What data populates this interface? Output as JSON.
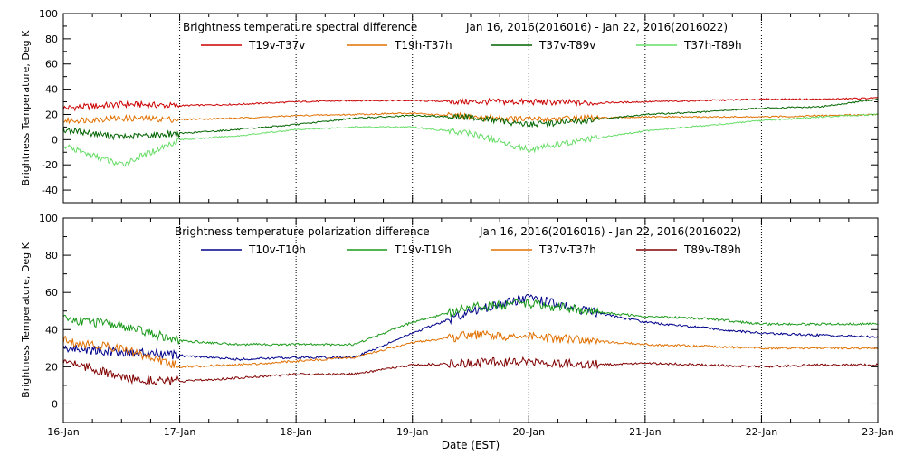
{
  "chart_data": [
    {
      "type": "line",
      "title": "Brightness temperature spectral difference",
      "subtitle": "Jan 16, 2016(2016016) - Jan 22, 2016(2016022)",
      "xlabel": "",
      "ylabel": "Brightness Temperature, Deg K",
      "ylim": [
        -50,
        100
      ],
      "xlim": [
        "16-Jan",
        "23-Jan"
      ],
      "yticks": [
        -40,
        -20,
        0,
        20,
        40,
        60,
        80,
        100
      ],
      "grid": "vertical dotted at day boundaries",
      "legend_placement": "top",
      "x": [
        "16-Jan",
        "16.5",
        "17-Jan",
        "17.5",
        "18-Jan",
        "18.5",
        "19-Jan",
        "19.5",
        "20-Jan",
        "20.5",
        "21-Jan",
        "21.5",
        "22-Jan",
        "22.5",
        "23-Jan"
      ],
      "series": [
        {
          "name": "T19v-T37v",
          "color": "#cc0000",
          "values": [
            25,
            28,
            27,
            28,
            30,
            31,
            31,
            30,
            30,
            29,
            30,
            31,
            32,
            32,
            33
          ]
        },
        {
          "name": "T19h-T37h",
          "color": "#e07000",
          "values": [
            15,
            17,
            16,
            17,
            19,
            20,
            21,
            18,
            16,
            17,
            18,
            18,
            18,
            19,
            20
          ]
        },
        {
          "name": "T37v-T89v",
          "color": "#006400",
          "values": [
            8,
            2,
            5,
            8,
            12,
            17,
            19,
            18,
            12,
            15,
            20,
            22,
            25,
            26,
            32
          ]
        },
        {
          "name": "T37h-T89h",
          "color": "#66dd66",
          "values": [
            -5,
            -20,
            0,
            3,
            8,
            10,
            10,
            5,
            -8,
            0,
            7,
            11,
            15,
            18,
            20
          ]
        }
      ]
    },
    {
      "type": "line",
      "title": "Brightness temperature polarization difference",
      "subtitle": "Jan 16, 2016(2016016) - Jan 22, 2016(2016022)",
      "xlabel": "Date (EST)",
      "ylabel": "Brightness Temperature, Deg K",
      "ylim": [
        -10,
        100
      ],
      "xlim": [
        "16-Jan",
        "23-Jan"
      ],
      "yticks": [
        0,
        20,
        40,
        60,
        80,
        100
      ],
      "xticks": [
        "16-Jan",
        "17-Jan",
        "18-Jan",
        "19-Jan",
        "20-Jan",
        "21-Jan",
        "22-Jan",
        "23-Jan"
      ],
      "grid": "vertical dotted at day boundaries",
      "legend_placement": "top",
      "x": [
        "16-Jan",
        "16.5",
        "17-Jan",
        "17.5",
        "18-Jan",
        "18.5",
        "19-Jan",
        "19.5",
        "20-Jan",
        "20.5",
        "21-Jan",
        "21.5",
        "22-Jan",
        "22.5",
        "23-Jan"
      ],
      "series": [
        {
          "name": "T10v-T10h",
          "color": "#00008b",
          "values": [
            30,
            28,
            26,
            24,
            25,
            25,
            38,
            50,
            57,
            50,
            44,
            41,
            38,
            37,
            36
          ]
        },
        {
          "name": "T19v-T19h",
          "color": "#1a9a1a",
          "values": [
            46,
            42,
            34,
            32,
            32,
            32,
            44,
            52,
            54,
            50,
            47,
            46,
            43,
            43,
            43
          ]
        },
        {
          "name": "T37v-T37h",
          "color": "#e07000",
          "values": [
            34,
            30,
            20,
            21,
            23,
            25,
            33,
            37,
            36,
            34,
            32,
            31,
            30,
            30,
            30
          ]
        },
        {
          "name": "T89v-T89h",
          "color": "#800000",
          "values": [
            24,
            14,
            12,
            14,
            16,
            16,
            21,
            22,
            23,
            21,
            22,
            21,
            20,
            21,
            21
          ]
        }
      ]
    }
  ]
}
